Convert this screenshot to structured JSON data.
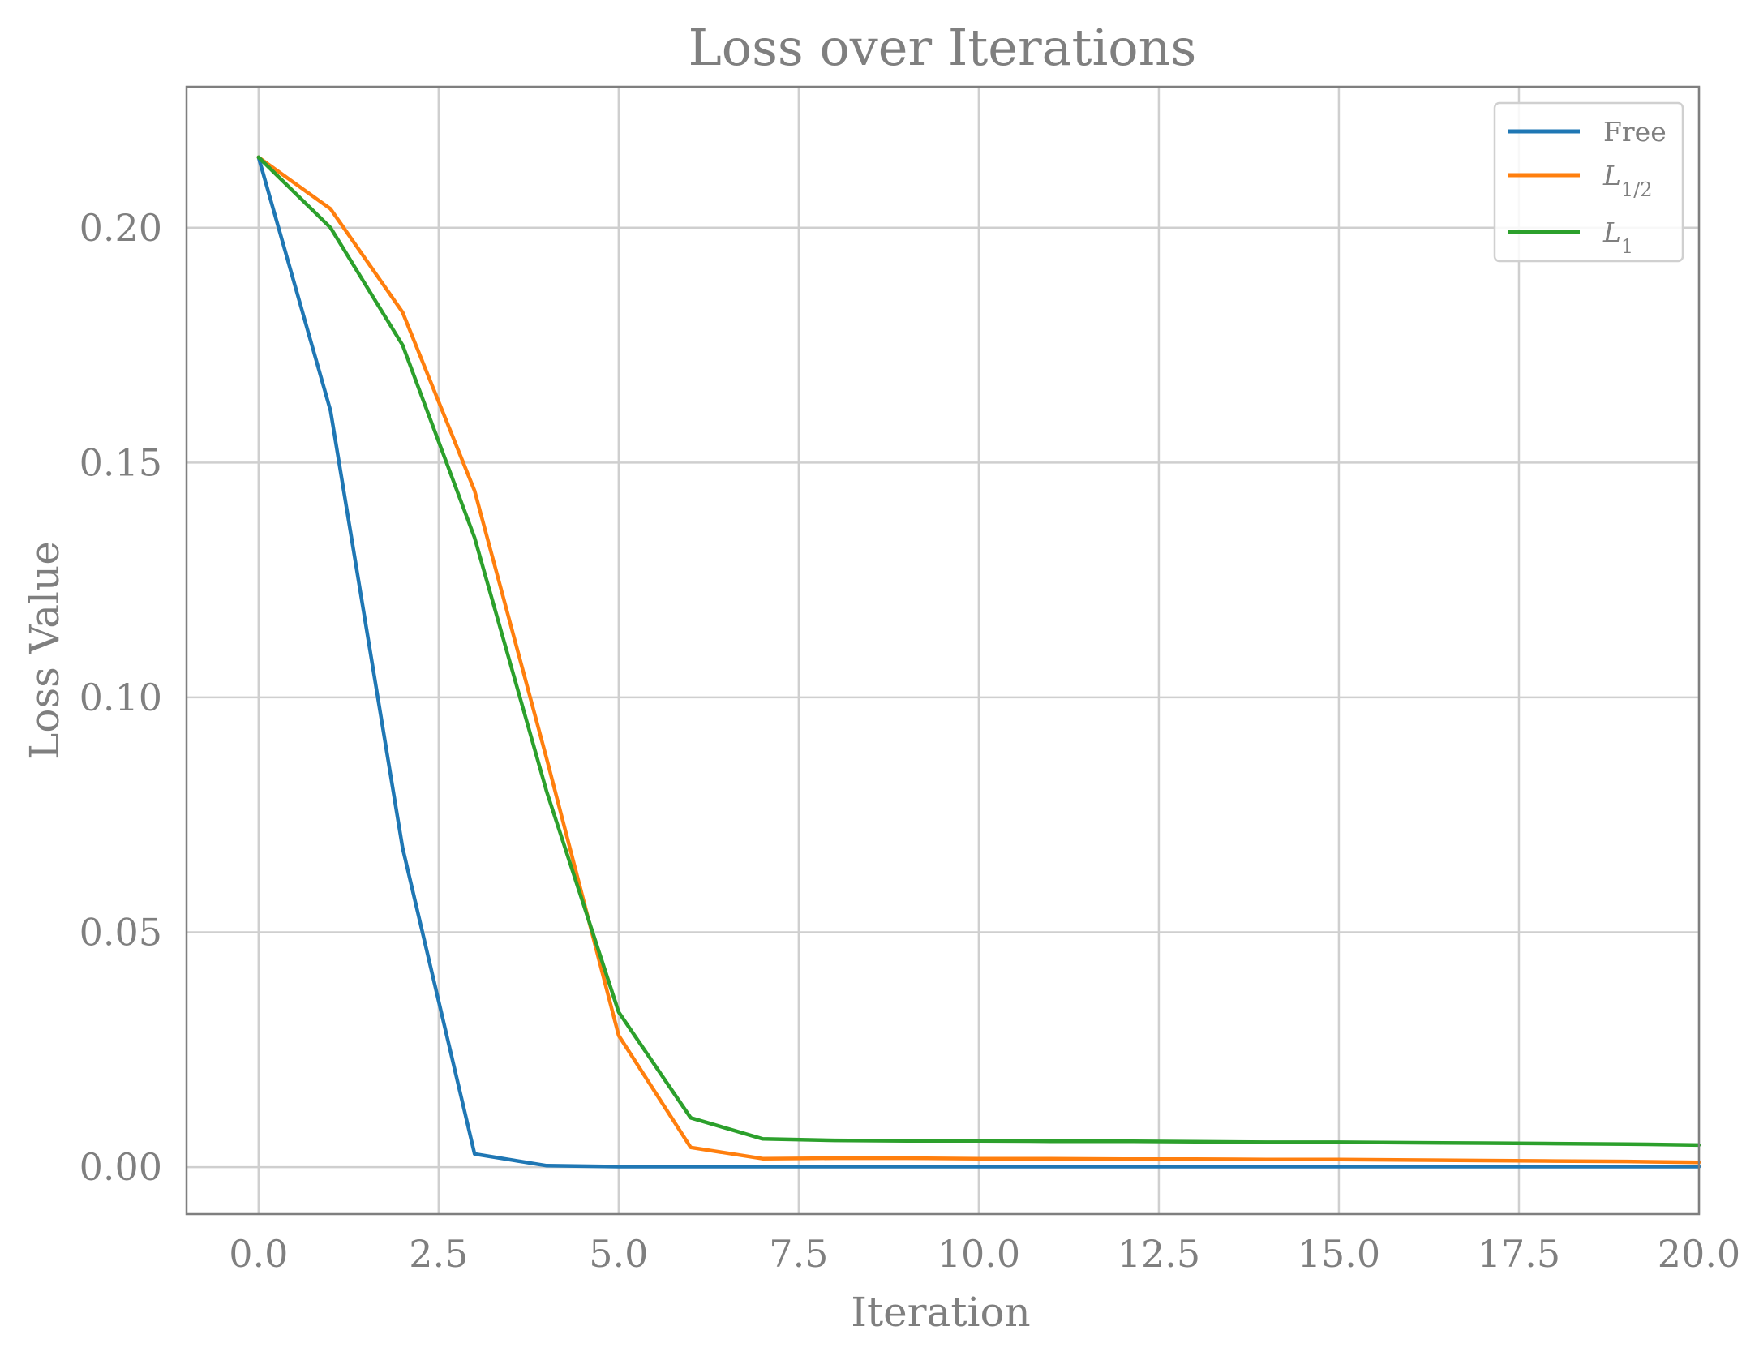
{
  "chart_data": {
    "type": "line",
    "title": "Loss over Iterations",
    "xlabel": "Iteration",
    "ylabel": "Loss Value",
    "xlim": [
      -1,
      20
    ],
    "ylim": [
      -0.01,
      0.23
    ],
    "grid": true,
    "legend_position": "top-right",
    "x_ticks": [
      0.0,
      2.5,
      5.0,
      7.5,
      10.0,
      12.5,
      15.0,
      17.5,
      20.0
    ],
    "x_tick_labels": [
      "0.0",
      "2.5",
      "5.0",
      "7.5",
      "10.0",
      "12.5",
      "15.0",
      "17.5",
      "20.0"
    ],
    "y_ticks": [
      0.0,
      0.05,
      0.1,
      0.15,
      0.2
    ],
    "y_tick_labels": [
      "0.00",
      "0.05",
      "0.10",
      "0.15",
      "0.20"
    ],
    "x": [
      0,
      1,
      2,
      3,
      4,
      5,
      6,
      7,
      8,
      9,
      10,
      11,
      12,
      13,
      14,
      15,
      16,
      17,
      18,
      19,
      20
    ],
    "series": [
      {
        "name": "Free",
        "color": "#1f77b4",
        "values": [
          0.215,
          0.161,
          0.068,
          0.0028,
          0.0003,
          0.0001,
          0.0001,
          0.0001,
          0.0001,
          0.0001,
          0.0001,
          0.0001,
          0.0001,
          0.0001,
          0.0001,
          0.0001,
          0.0001,
          0.0001,
          0.0001,
          0.0001,
          0.0001
        ]
      },
      {
        "name": "L1/2",
        "color": "#ff7f0e",
        "values": [
          0.215,
          0.204,
          0.182,
          0.144,
          0.087,
          0.028,
          0.0042,
          0.0018,
          0.0019,
          0.0019,
          0.0018,
          0.0018,
          0.0017,
          0.0017,
          0.0016,
          0.0016,
          0.0015,
          0.0014,
          0.0013,
          0.0012,
          0.001
        ]
      },
      {
        "name": "L1",
        "color": "#2ca02c",
        "values": [
          0.215,
          0.2,
          0.175,
          0.134,
          0.08,
          0.033,
          0.0105,
          0.006,
          0.0057,
          0.0056,
          0.0056,
          0.0055,
          0.0055,
          0.0054,
          0.0053,
          0.0053,
          0.0052,
          0.0051,
          0.005,
          0.0049,
          0.0047
        ]
      }
    ]
  }
}
